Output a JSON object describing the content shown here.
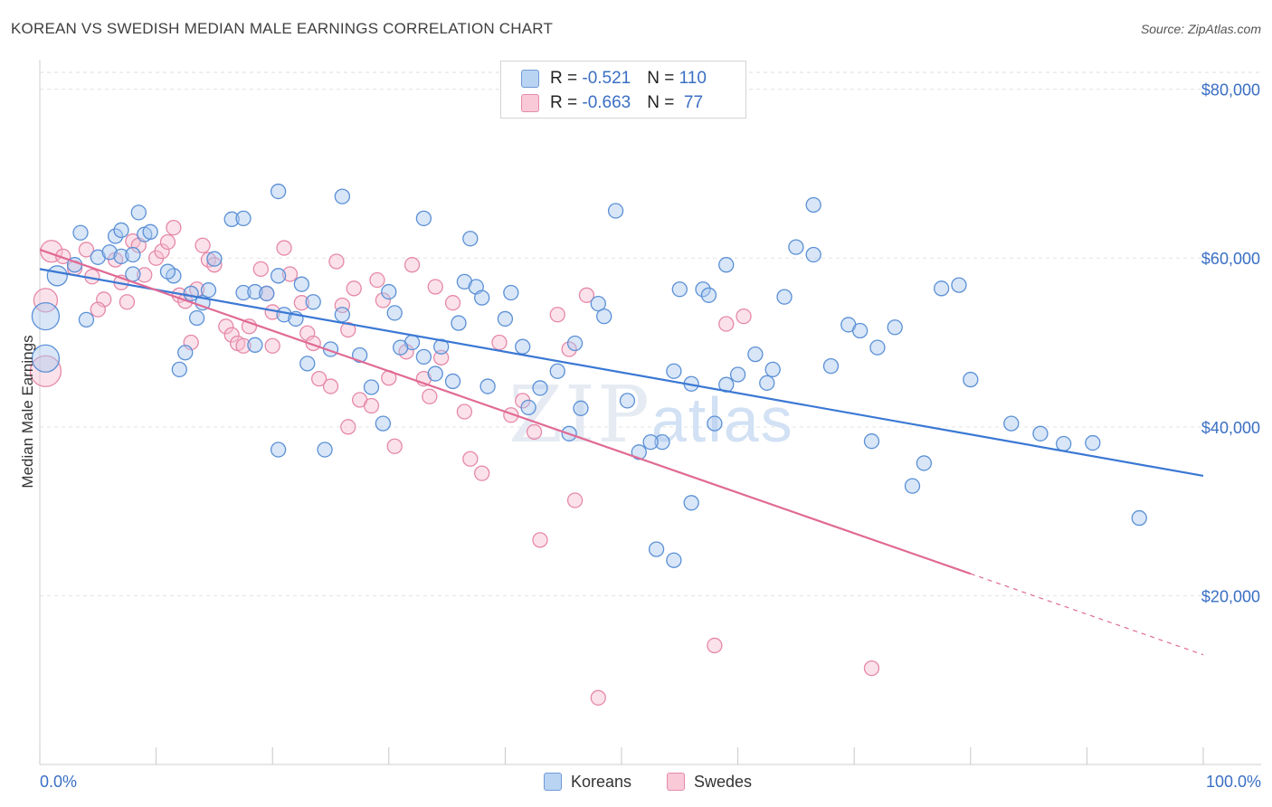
{
  "header": {
    "title": "KOREAN VS SWEDISH MEDIAN MALE EARNINGS CORRELATION CHART",
    "source": "Source: ZipAtlas.com"
  },
  "legend": {
    "rows": [
      {
        "r_label": "R = ",
        "r_value": "-0.521",
        "n_label": "N = ",
        "n_value": "110"
      },
      {
        "r_label": "R = ",
        "r_value": "-0.663",
        "n_label": "N = ",
        "n_value": " 77"
      }
    ],
    "bottom": [
      "Koreans",
      "Swedes"
    ]
  },
  "colors": {
    "koreans_fill": "#a9c8f0",
    "koreans_stroke": "#5b90d6",
    "koreans_line": "#3a78d4",
    "swedes_fill": "#f6bfd1",
    "swedes_stroke": "#e688a8",
    "swedes_line": "#e06a94",
    "axis_text": "#3a6fc4"
  },
  "chart_data": {
    "type": "scatter",
    "title": "KOREAN VS SWEDISH MEDIAN MALE EARNINGS CORRELATION CHART",
    "xlabel": "",
    "ylabel": "Median Male Earnings",
    "xlim": [
      0,
      100
    ],
    "ylim": [
      0,
      82000
    ],
    "x_tick_labels": [
      "0.0%",
      "100.0%"
    ],
    "y_ticks": [
      20000,
      40000,
      60000,
      80000
    ],
    "y_tick_labels": [
      "$20,000",
      "$40,000",
      "$60,000",
      "$80,000"
    ],
    "grid": true,
    "legend_position": "top-center",
    "watermark": "ZIPatlas",
    "series": [
      {
        "name": "Koreans",
        "trend": {
          "x0": 0,
          "y0": 58700,
          "x1": 100,
          "y1": 34200,
          "dashed_from": null
        },
        "points": [
          [
            0.5,
            53100
          ],
          [
            0.5,
            48100
          ],
          [
            1.5,
            57900
          ],
          [
            3.0,
            59200
          ],
          [
            3.5,
            63000
          ],
          [
            4.0,
            52700
          ],
          [
            5.0,
            60100
          ],
          [
            6.0,
            60700
          ],
          [
            6.5,
            62600
          ],
          [
            7.0,
            63300
          ],
          [
            7.0,
            60200
          ],
          [
            8.0,
            60400
          ],
          [
            8.5,
            65400
          ],
          [
            9.0,
            62800
          ],
          [
            8.0,
            58100
          ],
          [
            11.5,
            57900
          ],
          [
            13.0,
            55800
          ],
          [
            14.0,
            54700
          ],
          [
            14.5,
            56200
          ],
          [
            15.0,
            59900
          ],
          [
            12.5,
            48800
          ],
          [
            12.0,
            46800
          ],
          [
            17.5,
            55900
          ],
          [
            18.5,
            56000
          ],
          [
            19.5,
            55800
          ],
          [
            20.5,
            57900
          ],
          [
            21.0,
            53300
          ],
          [
            22.0,
            52800
          ],
          [
            22.5,
            56900
          ],
          [
            23.5,
            54800
          ],
          [
            16.5,
            64600
          ],
          [
            17.5,
            64700
          ],
          [
            20.5,
            67900
          ],
          [
            26.0,
            67300
          ],
          [
            26.0,
            53300
          ],
          [
            25.0,
            49200
          ],
          [
            27.5,
            48500
          ],
          [
            28.5,
            44700
          ],
          [
            30.0,
            56000
          ],
          [
            30.5,
            53500
          ],
          [
            32.0,
            50000
          ],
          [
            33.0,
            48300
          ],
          [
            34.0,
            46300
          ],
          [
            35.5,
            45400
          ],
          [
            33.0,
            64700
          ],
          [
            37.0,
            62300
          ],
          [
            36.5,
            57200
          ],
          [
            37.5,
            56600
          ],
          [
            38.0,
            55300
          ],
          [
            36.0,
            52300
          ],
          [
            40.5,
            55900
          ],
          [
            40.0,
            52800
          ],
          [
            41.5,
            49500
          ],
          [
            42.0,
            42300
          ],
          [
            43.0,
            44600
          ],
          [
            38.5,
            44800
          ],
          [
            45.5,
            39200
          ],
          [
            46.5,
            42200
          ],
          [
            48.0,
            54600
          ],
          [
            48.5,
            53100
          ],
          [
            49.5,
            65600
          ],
          [
            50.5,
            43100
          ],
          [
            51.5,
            37000
          ],
          [
            53.5,
            38200
          ],
          [
            54.5,
            46600
          ],
          [
            56.0,
            45100
          ],
          [
            55.0,
            56300
          ],
          [
            57.0,
            56300
          ],
          [
            58.0,
            40400
          ],
          [
            59.0,
            45000
          ],
          [
            60.0,
            46200
          ],
          [
            61.5,
            48600
          ],
          [
            62.5,
            45200
          ],
          [
            63.0,
            46800
          ],
          [
            64.0,
            55400
          ],
          [
            65.0,
            61300
          ],
          [
            66.5,
            60400
          ],
          [
            68.0,
            47200
          ],
          [
            69.5,
            52100
          ],
          [
            70.5,
            51400
          ],
          [
            72.0,
            49400
          ],
          [
            73.5,
            51800
          ],
          [
            76.0,
            35700
          ],
          [
            75.0,
            33000
          ],
          [
            77.5,
            56400
          ],
          [
            79.0,
            56800
          ],
          [
            80.0,
            45600
          ],
          [
            83.5,
            40400
          ],
          [
            86.0,
            39200
          ],
          [
            88.0,
            38000
          ],
          [
            90.5,
            38100
          ],
          [
            94.5,
            29200
          ],
          [
            23.0,
            47500
          ],
          [
            24.5,
            37300
          ],
          [
            20.5,
            37300
          ],
          [
            29.5,
            40400
          ],
          [
            31.0,
            49400
          ],
          [
            34.5,
            49500
          ],
          [
            44.5,
            46600
          ],
          [
            52.5,
            38200
          ],
          [
            53.0,
            25500
          ],
          [
            54.5,
            24200
          ],
          [
            56.0,
            31000
          ],
          [
            57.5,
            55600
          ],
          [
            59.0,
            59200
          ],
          [
            66.5,
            66300
          ],
          [
            71.5,
            38300
          ],
          [
            46.0,
            49900
          ],
          [
            18.5,
            49700
          ],
          [
            13.5,
            52900
          ],
          [
            9.5,
            63100
          ],
          [
            11.0,
            58400
          ]
        ]
      },
      {
        "name": "Swedes",
        "trend": {
          "x0": 0,
          "y0": 61000,
          "x1": 100,
          "y1": 13000,
          "dashed_from": 80
        },
        "points": [
          [
            0.5,
            46600
          ],
          [
            0.5,
            55000
          ],
          [
            1.0,
            60800
          ],
          [
            2.0,
            60200
          ],
          [
            3.0,
            58800
          ],
          [
            4.0,
            61000
          ],
          [
            4.5,
            57800
          ],
          [
            5.5,
            55100
          ],
          [
            5.0,
            53900
          ],
          [
            6.5,
            59800
          ],
          [
            7.0,
            57100
          ],
          [
            7.5,
            54800
          ],
          [
            8.0,
            62000
          ],
          [
            8.5,
            61500
          ],
          [
            9.0,
            58000
          ],
          [
            10.0,
            60000
          ],
          [
            10.5,
            60800
          ],
          [
            11.0,
            61900
          ],
          [
            11.5,
            63600
          ],
          [
            12.0,
            55600
          ],
          [
            12.5,
            54900
          ],
          [
            13.0,
            50000
          ],
          [
            13.5,
            56300
          ],
          [
            14.5,
            59800
          ],
          [
            15.0,
            59200
          ],
          [
            16.0,
            51900
          ],
          [
            16.5,
            50900
          ],
          [
            17.0,
            49900
          ],
          [
            17.5,
            49600
          ],
          [
            18.0,
            51900
          ],
          [
            19.0,
            58700
          ],
          [
            19.5,
            55800
          ],
          [
            20.0,
            53600
          ],
          [
            21.0,
            61200
          ],
          [
            21.5,
            58100
          ],
          [
            22.5,
            54700
          ],
          [
            23.0,
            51100
          ],
          [
            23.5,
            49900
          ],
          [
            24.0,
            45700
          ],
          [
            25.0,
            44800
          ],
          [
            25.5,
            59600
          ],
          [
            26.0,
            54400
          ],
          [
            26.5,
            51500
          ],
          [
            27.5,
            43200
          ],
          [
            28.5,
            42500
          ],
          [
            29.0,
            57400
          ],
          [
            29.5,
            55000
          ],
          [
            30.0,
            45800
          ],
          [
            30.5,
            37700
          ],
          [
            31.5,
            48900
          ],
          [
            32.0,
            59200
          ],
          [
            33.5,
            43600
          ],
          [
            34.0,
            56600
          ],
          [
            35.5,
            54700
          ],
          [
            36.5,
            41800
          ],
          [
            37.0,
            36200
          ],
          [
            38.0,
            34500
          ],
          [
            39.5,
            50000
          ],
          [
            40.5,
            41400
          ],
          [
            41.5,
            43100
          ],
          [
            42.5,
            39400
          ],
          [
            43.0,
            26600
          ],
          [
            44.5,
            53300
          ],
          [
            45.5,
            49200
          ],
          [
            46.0,
            31300
          ],
          [
            47.0,
            55600
          ],
          [
            48.0,
            7900
          ],
          [
            58.0,
            14100
          ],
          [
            59.0,
            52200
          ],
          [
            60.5,
            53100
          ],
          [
            71.5,
            11400
          ],
          [
            33.0,
            45700
          ],
          [
            26.5,
            40000
          ],
          [
            20.0,
            49600
          ],
          [
            14.0,
            61500
          ],
          [
            27.0,
            56400
          ],
          [
            34.5,
            48200
          ]
        ]
      }
    ]
  }
}
